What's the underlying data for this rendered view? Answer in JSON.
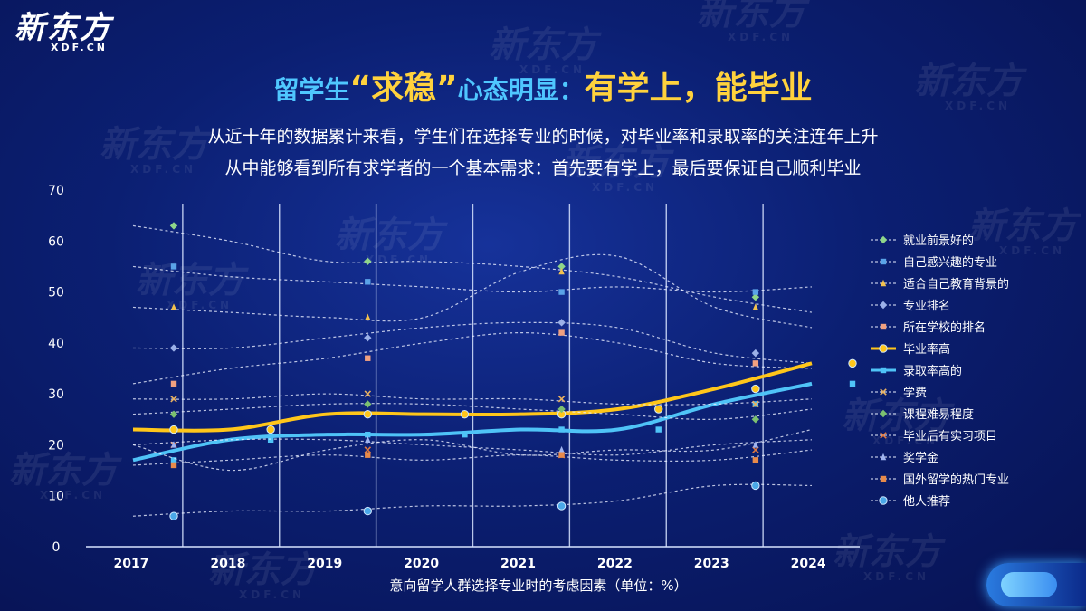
{
  "brand": {
    "logo_main": "新东方",
    "logo_sub": "XDF.CN"
  },
  "title": {
    "part1": "留学生",
    "part2": "“求稳”",
    "part3": "心态明显：",
    "part4": "有学上，能毕业"
  },
  "subtitle": [
    "从近十年的数据累计来看，学生们在选择专业的时候，对毕业率和录取率的关注连年上升",
    "从中能够看到所有求学者的一个基本需求：首先要有学上，最后要保证自己顺利毕业"
  ],
  "colors": {
    "yellow": "#ffc61a",
    "lightblue": "#4fc3f7",
    "background": "#0b1f72"
  },
  "chart_data": {
    "type": "line",
    "xlabel": "意向留学人群选择专业时的考虑因素（单位：%）",
    "ylabel": "",
    "x": [
      "2017",
      "2018",
      "2019",
      "2020",
      "2021",
      "2022",
      "2023",
      "2024"
    ],
    "ylim": [
      0,
      70
    ],
    "yticks": [
      0,
      10,
      20,
      30,
      40,
      50,
      60,
      70
    ],
    "legend_position": "right",
    "grid": false,
    "series": [
      {
        "name": "就业前景好的",
        "color": "#8fd68a",
        "marker": "diamond",
        "values": [
          63,
          60,
          56,
          56,
          55,
          53,
          49,
          46
        ]
      },
      {
        "name": "自己感兴趣的专业",
        "color": "#5aa3e8",
        "marker": "square",
        "values": [
          55,
          53,
          52,
          51,
          50,
          51,
          50,
          51
        ]
      },
      {
        "name": "适合自己教育背景的",
        "color": "#f2c14e",
        "marker": "triangle",
        "values": [
          47,
          46,
          45,
          45,
          54,
          57,
          47,
          43
        ]
      },
      {
        "name": "专业排名",
        "color": "#9bb0e8",
        "marker": "diamond",
        "values": [
          39,
          39,
          41,
          43,
          44,
          43,
          38,
          36
        ]
      },
      {
        "name": "所在学校的排名",
        "color": "#f0a080",
        "marker": "square",
        "values": [
          32,
          35,
          37,
          40,
          42,
          40,
          36,
          35
        ]
      },
      {
        "name": "毕业率高",
        "color": "#ffc61a",
        "marker": "circle",
        "values": [
          23,
          23,
          26,
          26,
          26,
          27,
          31,
          36
        ]
      },
      {
        "name": "录取率高的",
        "color": "#4fc3f7",
        "marker": "square",
        "values": [
          17,
          21,
          22,
          22,
          23,
          23,
          28,
          32
        ]
      },
      {
        "name": "学费",
        "color": "#e8b060",
        "marker": "x",
        "values": [
          29,
          29,
          30,
          29,
          29,
          28,
          28,
          29
        ]
      },
      {
        "name": "课程难易程度",
        "color": "#7cc070",
        "marker": "diamond",
        "values": [
          26,
          27,
          28,
          28,
          27,
          26,
          25,
          27
        ]
      },
      {
        "name": "毕业后有实习项目",
        "color": "#e07840",
        "marker": "x",
        "values": [
          20,
          15,
          19,
          21,
          18,
          19,
          19,
          23
        ]
      },
      {
        "name": "奖学金",
        "color": "#a0b4f0",
        "marker": "triangle",
        "values": [
          20,
          21,
          21,
          20,
          19,
          18,
          20,
          21
        ]
      },
      {
        "name": "国外留学的热门专业",
        "color": "#e88a4a",
        "marker": "square",
        "values": [
          16,
          17,
          18,
          17,
          18,
          17,
          17,
          19
        ]
      },
      {
        "name": "他人推荐",
        "color": "#4aa8e8",
        "marker": "circle",
        "values": [
          6,
          7,
          7,
          8,
          8,
          9,
          12,
          12
        ]
      }
    ]
  }
}
